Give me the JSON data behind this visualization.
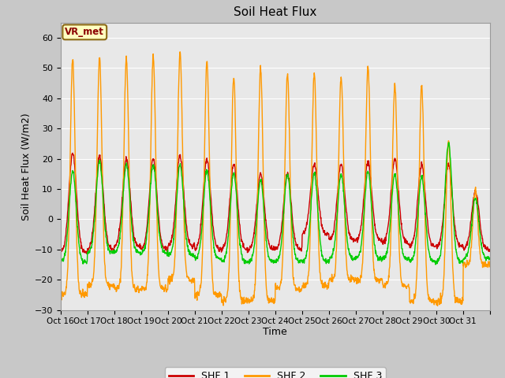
{
  "title": "Soil Heat Flux",
  "xlabel": "Time",
  "ylabel": "Soil Heat Flux (W/m2)",
  "ylim": [
    -30,
    65
  ],
  "yticks": [
    -30,
    -20,
    -10,
    0,
    10,
    20,
    30,
    40,
    50,
    60
  ],
  "x_tick_labels": [
    "Oct 16",
    "Oct 17",
    "Oct 18",
    "Oct 19",
    "Oct 20",
    "Oct 21",
    "Oct 22",
    "Oct 23",
    "Oct 24",
    "Oct 25",
    "Oct 26",
    "Oct 27",
    "Oct 28",
    "Oct 29",
    "Oct 30",
    "Oct 31"
  ],
  "color_shf1": "#cc0000",
  "color_shf2": "#ff9900",
  "color_shf3": "#00cc00",
  "legend_labels": [
    "SHF 1",
    "SHF 2",
    "SHF 3"
  ],
  "annotation_text": "VR_met",
  "linewidth": 1.0,
  "n_days": 16,
  "pts_per_day": 96,
  "shf1_day_peaks": [
    22,
    21,
    20,
    20,
    21,
    20,
    18,
    15,
    15,
    18,
    18,
    19,
    20,
    18,
    18,
    9
  ],
  "shf1_night_vals": [
    -11,
    -10,
    -9,
    -10,
    -9,
    -10,
    -10,
    -10,
    -10,
    -5,
    -7,
    -7,
    -8,
    -9,
    -9,
    -10
  ],
  "shf2_day_peaks": [
    53,
    53,
    53,
    54,
    55,
    52,
    47,
    50,
    48,
    48,
    47,
    50,
    44,
    44,
    26,
    10
  ],
  "shf2_night_vals": [
    -25,
    -22,
    -23,
    -23,
    -20,
    -25,
    -27,
    -27,
    -23,
    -22,
    -20,
    -20,
    -22,
    -27,
    -27,
    -15
  ],
  "shf3_day_peaks": [
    16,
    19,
    18,
    18,
    18,
    16,
    15,
    13,
    15,
    15,
    15,
    16,
    15,
    14,
    25,
    7
  ],
  "shf3_night_vals": [
    -14,
    -11,
    -11,
    -11,
    -12,
    -13,
    -14,
    -14,
    -14,
    -14,
    -13,
    -13,
    -13,
    -14,
    -14,
    -13
  ],
  "fig_bg": "#c8c8c8",
  "plot_bg": "#e8e8e8",
  "grid_color": "#ffffff"
}
